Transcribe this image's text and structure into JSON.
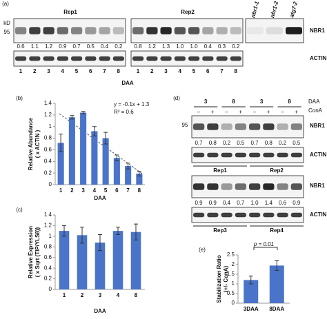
{
  "panel_a": {
    "label": "(a)",
    "kd": "kD",
    "marker": "95",
    "reps": [
      "Rep1",
      "Rep2"
    ],
    "mutants": [
      "nbr1-1",
      "nbr1-2",
      "atg7-2"
    ],
    "protein": "NBR1",
    "loading": "ACTIN",
    "xlabel": "DAA",
    "lanes": [
      "1",
      "2",
      "3",
      "4",
      "5",
      "6",
      "7",
      "8"
    ],
    "ratios": [
      [
        "0.6",
        "1.1",
        "1.2",
        "0.9",
        "0.7",
        "0.5",
        "0.4",
        "0.2"
      ],
      [
        "0.8",
        "1.2",
        "1.3",
        "1.0",
        "1.0",
        "0.4",
        "0.3",
        "0.2"
      ]
    ]
  },
  "panel_d": {
    "label": "(d)",
    "daa_label": "DAA",
    "cona_label": "ConA",
    "marker": "95",
    "protein": "NBR1",
    "loading": "ACTIN",
    "daa": [
      "3",
      "8",
      "3",
      "8"
    ],
    "cona": [
      "–",
      "+",
      "–",
      "+",
      "–",
      "+",
      "–",
      "+"
    ],
    "blots": [
      {
        "ratios": [
          "0.7",
          "0.8",
          "0.2",
          "0.5",
          "0.7",
          "0.8",
          "0.2",
          "0.5"
        ],
        "reps": [
          "Rep1",
          "Rep2"
        ]
      },
      {
        "ratios": [
          "0.9",
          "0.9",
          "0.4",
          "0.7",
          "1.0",
          "1.4",
          "0.6",
          "0.9"
        ],
        "reps": [
          "Rep3",
          "Rep4"
        ]
      }
    ]
  },
  "chart_data": [
    {
      "type": "bar",
      "panel": "(b)",
      "ylabel": [
        "Relative Abundance",
        "( x ACTIN )"
      ],
      "xlabel": "DAA",
      "equation": [
        "y = -0.1x + 1.3",
        "R² = 0.6"
      ],
      "categories": [
        "1",
        "2",
        "3",
        "4",
        "5",
        "6",
        "7",
        "8"
      ],
      "values": [
        0.72,
        1.16,
        1.24,
        0.92,
        0.8,
        0.46,
        0.32,
        0.19
      ],
      "errors": [
        0.15,
        0.03,
        0.02,
        0.08,
        0.1,
        0.05,
        0.05,
        0.04
      ],
      "color": "#4a74c9",
      "ylim": [
        0,
        1.4
      ],
      "yticks": [
        0,
        0.2,
        0.4,
        0.6,
        0.8,
        1,
        1.2,
        1.4
      ]
    },
    {
      "type": "bar",
      "panel": "(c)",
      "ylabel": [
        "Relative Expression",
        "( x Sqrt (TIP/YLS8))"
      ],
      "xlabel": "DAA",
      "categories": [
        "1",
        "2",
        "3",
        "4",
        "8"
      ],
      "values": [
        1.1,
        1.02,
        0.88,
        1.1,
        1.08
      ],
      "errors": [
        0.1,
        0.15,
        0.15,
        0.07,
        0.15
      ],
      "color": "#4a74c9",
      "ylim": [
        0,
        1.4
      ],
      "yticks": [
        0,
        0.2,
        0.4,
        0.6,
        0.8,
        1,
        1.2,
        1.4
      ]
    },
    {
      "type": "bar",
      "panel": "(e)",
      "ylabel": [
        "Stabilization Ratio",
        "(+/- ConA)"
      ],
      "annotation": "p = 0.01",
      "categories": [
        "3DAA",
        "8DAA"
      ],
      "values": [
        1.2,
        1.95
      ],
      "errors": [
        0.2,
        0.25
      ],
      "color": "#4a74c9",
      "ylim": [
        0,
        2.5
      ],
      "yticks": [
        0,
        0.5,
        1,
        1.5,
        2,
        2.5
      ]
    }
  ]
}
